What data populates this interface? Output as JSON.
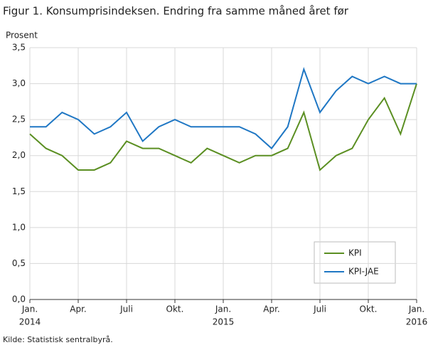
{
  "chart_data": {
    "type": "line",
    "title": "Figur 1. Konsumprisindeksen. Endring fra samme måned året før",
    "y_label": "Prosent",
    "source": "Kilde: Statistisk sentralbyrå.",
    "categories": [
      "Jan.",
      null,
      null,
      "Apr.",
      null,
      null,
      "Juli",
      null,
      null,
      "Okt.",
      null,
      null,
      "Jan.",
      null,
      null,
      "Apr.",
      null,
      null,
      "Juli",
      null,
      null,
      "Okt.",
      null,
      null,
      "Jan."
    ],
    "category_years": [
      "2014",
      null,
      null,
      null,
      null,
      null,
      null,
      null,
      null,
      null,
      null,
      null,
      "2015",
      null,
      null,
      null,
      null,
      null,
      null,
      null,
      null,
      null,
      null,
      null,
      "2016"
    ],
    "series": [
      {
        "name": "KPI",
        "color": "#5b8f22",
        "values": [
          2.3,
          2.1,
          2.0,
          1.8,
          1.8,
          1.9,
          2.2,
          2.1,
          2.1,
          2.0,
          1.9,
          2.1,
          2.0,
          1.9,
          2.0,
          2.0,
          2.1,
          2.6,
          1.8,
          2.0,
          2.1,
          2.5,
          2.8,
          2.3,
          3.0
        ]
      },
      {
        "name": "KPI-JAE",
        "color": "#1f77c4",
        "values": [
          2.4,
          2.4,
          2.6,
          2.5,
          2.3,
          2.4,
          2.6,
          2.2,
          2.4,
          2.5,
          2.4,
          2.4,
          2.4,
          2.4,
          2.3,
          2.1,
          2.4,
          3.2,
          2.6,
          2.9,
          3.1,
          3.0,
          3.1,
          3.0,
          3.0
        ]
      }
    ],
    "ylim": [
      0,
      3.5
    ],
    "yticks": [
      {
        "value": 0,
        "label": "0,0"
      },
      {
        "value": 0.5,
        "label": "0,5"
      },
      {
        "value": 1,
        "label": "1,0"
      },
      {
        "value": 1.5,
        "label": "1,5"
      },
      {
        "value": 2,
        "label": "2,0"
      },
      {
        "value": 2.5,
        "label": "2,5"
      },
      {
        "value": 3,
        "label": "3,0"
      },
      {
        "value": 3.5,
        "label": "3,5"
      }
    ],
    "grid": true
  }
}
